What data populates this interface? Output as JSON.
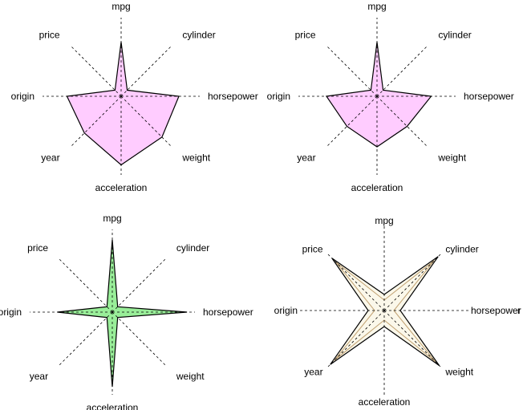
{
  "chart_data": [
    {
      "type": "radar",
      "axes": [
        "mpg",
        "cylinder",
        "horsepower",
        "weight",
        "acceleration",
        "year",
        "origin",
        "price"
      ],
      "rmax": 1,
      "series": [
        {
          "values": [
            0.75,
            0.12,
            0.8,
            0.8,
            0.95,
            0.72,
            0.75,
            0.12
          ],
          "fill": "#ffccff",
          "stroke": "#000000"
        }
      ]
    },
    {
      "type": "radar",
      "axes": [
        "mpg",
        "cylinder",
        "horsepower",
        "weight",
        "acceleration",
        "year",
        "origin",
        "price"
      ],
      "rmax": 1,
      "series": [
        {
          "values": [
            0.75,
            0.12,
            0.75,
            0.59,
            0.7,
            0.59,
            0.7,
            0.12
          ],
          "fill": "#ffccff",
          "stroke": "#000000"
        }
      ]
    },
    {
      "type": "radar",
      "axes": [
        "mpg",
        "cylinder",
        "horsepower",
        "weight",
        "acceleration",
        "year",
        "origin",
        "price"
      ],
      "rmax": 1,
      "series": [
        {
          "values": [
            0.95,
            0.1,
            0.98,
            0.1,
            0.98,
            0.1,
            0.72,
            0.1
          ],
          "fill": "#99ee99",
          "stroke": "#000000"
        }
      ]
    },
    {
      "type": "radar",
      "axes": [
        "mpg",
        "cylinder",
        "horsepower",
        "weight",
        "acceleration",
        "year",
        "origin",
        "price"
      ],
      "rmax": 1,
      "series": [
        {
          "values": [
            0.2,
            0.95,
            0.2,
            0.97,
            0.2,
            0.95,
            0.2,
            0.92
          ],
          "fill": "#fbf8ea",
          "stroke": "#000000"
        },
        {
          "values": [
            0.13,
            0.88,
            0.12,
            0.9,
            0.12,
            0.88,
            0.12,
            0.85
          ],
          "fill": "none",
          "stroke": "#c0a070"
        }
      ],
      "extra_label": "r"
    }
  ]
}
